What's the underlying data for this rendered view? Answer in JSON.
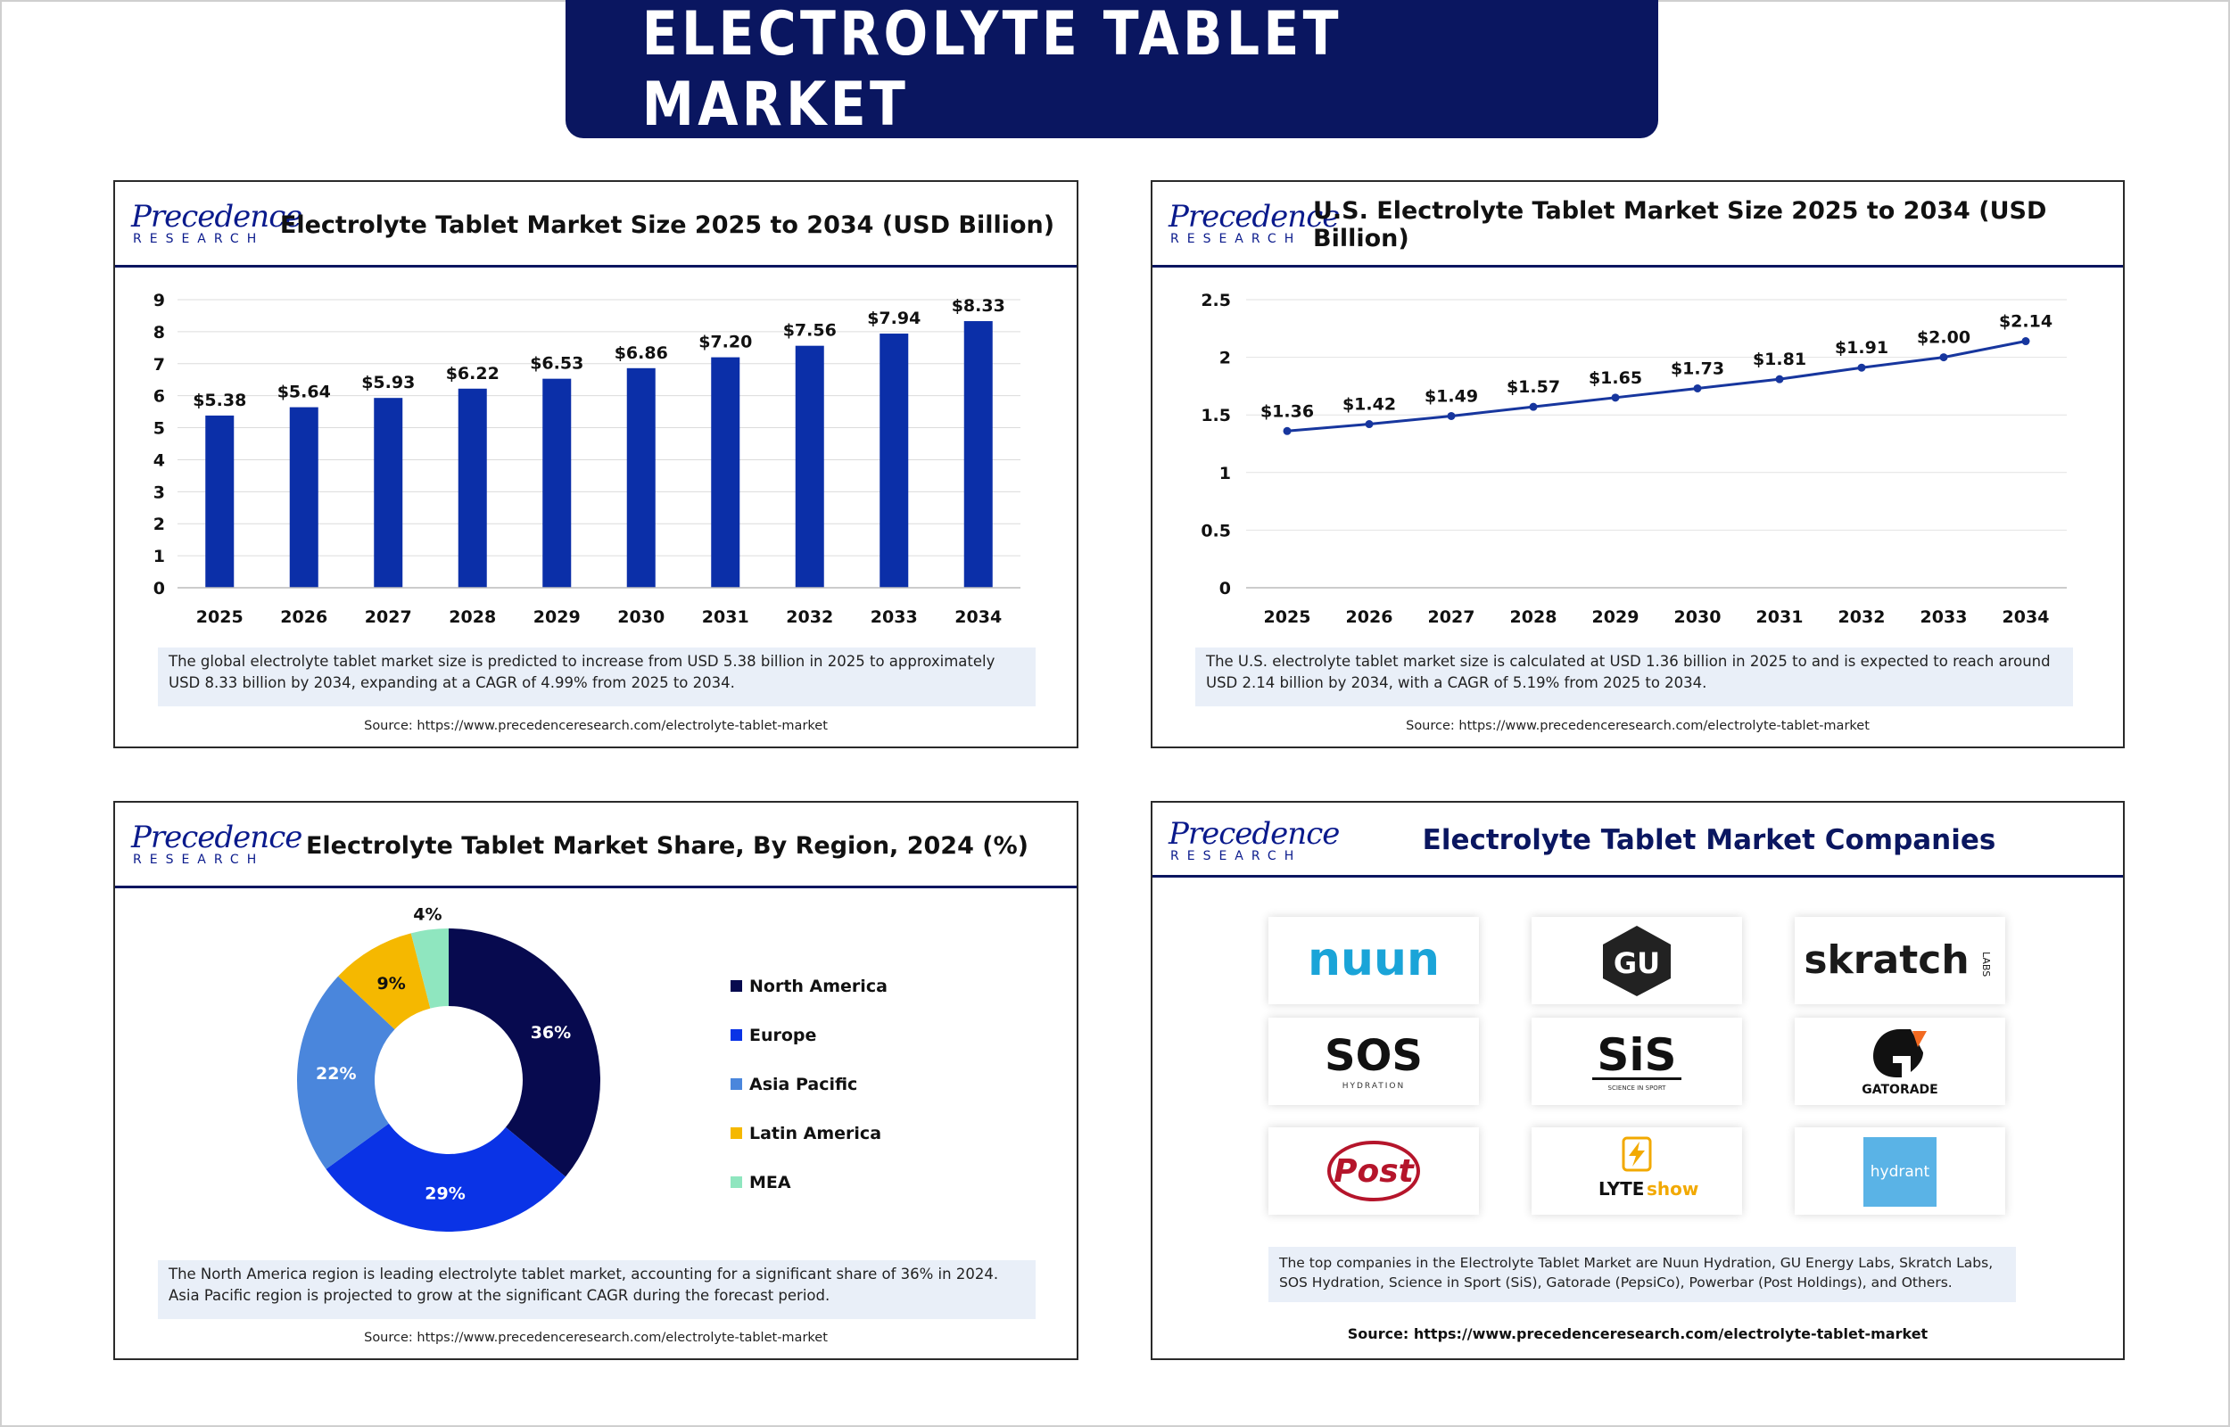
{
  "page": {
    "title": "ELECTROLYTE TABLET MARKET"
  },
  "brand": {
    "logo_top": "Precedence",
    "logo_bottom": "RESEARCH",
    "navy": "#0a1660",
    "bar_blue": "#0b2fa8",
    "line_blue": "#17369e"
  },
  "panels": {
    "global": {
      "title": "Electrolyte Tablet Market Size 2025 to 2034 (USD Billion)",
      "summary": "The global electrolyte tablet market size is predicted to increase from USD 5.38 billion in 2025 to approximately USD 8.33 billion by 2034, expanding at a CAGR of 4.99% from 2025 to 2034.",
      "source": "Source: https://www.precedenceresearch.com/electrolyte-tablet-market"
    },
    "us": {
      "title": "U.S. Electrolyte Tablet Market Size 2025 to 2034 (USD Billion)",
      "summary": "The U.S. electrolyte tablet market size is calculated at USD 1.36 billion in 2025 to and is expected to reach around USD 2.14 billion by 2034, with a CAGR of 5.19% from 2025 to 2034.",
      "source": "Source: https://www.precedenceresearch.com/electrolyte-tablet-market"
    },
    "region": {
      "title": "Electrolyte Tablet Market Share, By Region, 2024 (%)",
      "summary": "The North America region is leading electrolyte tablet market, accounting for a significant share of 36% in 2024. Asia Pacific region is projected to grow at the significant CAGR during the forecast period.",
      "source": "Source: https://www.precedenceresearch.com/electrolyte-tablet-market"
    },
    "companies": {
      "title": "Electrolyte Tablet Market Companies",
      "summary": "The top companies in the Electrolyte Tablet Market are Nuun Hydration, GU Energy Labs, Skratch Labs, SOS Hydration, Science in Sport (SiS), Gatorade (PepsiCo), Powerbar (Post Holdings), and Others.",
      "source": "Source: https://www.precedenceresearch.com/electrolyte-tablet-market",
      "logos": [
        {
          "name": "nuun",
          "text": "nuun"
        },
        {
          "name": "gu",
          "text": "GU"
        },
        {
          "name": "skratch",
          "text": "skratch",
          "sub": "LABS"
        },
        {
          "name": "sos",
          "text": "SOS",
          "sub": "HYDRATION"
        },
        {
          "name": "sis",
          "text": "SiS",
          "sub": "SCIENCE IN SPORT"
        },
        {
          "name": "gatorade",
          "text": "GATORADE"
        },
        {
          "name": "post",
          "text": "Post"
        },
        {
          "name": "lyteshow",
          "text": "LYTE",
          "text2": "show"
        },
        {
          "name": "hydrant",
          "text": "hydrant"
        }
      ]
    }
  },
  "chart_data": [
    {
      "type": "bar",
      "title": "Electrolyte Tablet Market Size 2025 to 2034 (USD Billion)",
      "categories": [
        "2025",
        "2026",
        "2027",
        "2028",
        "2029",
        "2030",
        "2031",
        "2032",
        "2033",
        "2034"
      ],
      "values": [
        5.38,
        5.64,
        5.93,
        6.22,
        6.53,
        6.86,
        7.2,
        7.56,
        7.94,
        8.33
      ],
      "labels": [
        "$5.38",
        "$5.64",
        "$5.93",
        "$6.22",
        "$6.53",
        "$6.86",
        "$7.20",
        "$7.56",
        "$7.94",
        "$8.33"
      ],
      "yticks": [
        "0",
        "1",
        "2",
        "3",
        "4",
        "5",
        "6",
        "7",
        "8",
        "9"
      ],
      "ylim": [
        0,
        9
      ],
      "grid": true
    },
    {
      "type": "line",
      "title": "U.S. Electrolyte Tablet Market Size 2025 to 2034 (USD Billion)",
      "categories": [
        "2025",
        "2026",
        "2027",
        "2028",
        "2029",
        "2030",
        "2031",
        "2032",
        "2033",
        "2034"
      ],
      "values": [
        1.36,
        1.42,
        1.49,
        1.57,
        1.65,
        1.73,
        1.81,
        1.91,
        2.0,
        2.14
      ],
      "labels": [
        "$1.36",
        "$1.42",
        "$1.49",
        "$1.57",
        "$1.65",
        "$1.73",
        "$1.81",
        "$1.91",
        "$2.00",
        "$2.14"
      ],
      "yticks": [
        "0",
        "0.5",
        "1",
        "1.5",
        "2",
        "2.5"
      ],
      "ylim": [
        0,
        2.5
      ],
      "grid": true
    },
    {
      "type": "pie",
      "title": "Electrolyte Tablet Market Share, By Region, 2024 (%)",
      "donut": true,
      "legend": "right",
      "slices": [
        {
          "name": "North America",
          "value": 36,
          "label": "36%",
          "color": "#070a4f"
        },
        {
          "name": "Europe",
          "value": 29,
          "label": "29%",
          "color": "#0a33e6"
        },
        {
          "name": "Asia Pacific",
          "value": 22,
          "label": "22%",
          "color": "#4a86dc"
        },
        {
          "name": "Latin America",
          "value": 9,
          "label": "9%",
          "color": "#f5b800"
        },
        {
          "name": "MEA",
          "value": 4,
          "label": "4%",
          "color": "#8fe6bf"
        }
      ]
    }
  ]
}
